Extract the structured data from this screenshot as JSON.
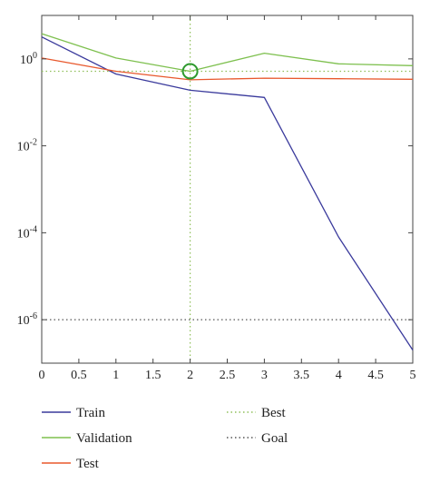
{
  "chart_data": {
    "type": "line",
    "title": "",
    "xlabel": "",
    "ylabel": "",
    "xlim": [
      0,
      5
    ],
    "ylim": [
      1e-07,
      10
    ],
    "yscale": "log",
    "grid": false,
    "x_ticks": [
      "0",
      "0.5",
      "1",
      "1.5",
      "2",
      "2.5",
      "3",
      "3.5",
      "4",
      "4.5",
      "5"
    ],
    "y_ticks": [
      {
        "value": 1,
        "base": "10",
        "exp": "0"
      },
      {
        "value": 0.01,
        "base": "10",
        "exp": "-2"
      },
      {
        "value": 0.0001,
        "base": "10",
        "exp": "-4"
      },
      {
        "value": 1e-06,
        "base": "10",
        "exp": "-6"
      }
    ],
    "x": [
      0,
      1,
      2,
      3,
      4,
      5
    ],
    "series": [
      {
        "name": "Train",
        "color": "#3a3a9c",
        "values": [
          3.2,
          0.45,
          0.19,
          0.13,
          8e-05,
          2e-07
        ]
      },
      {
        "name": "Validation",
        "color": "#7ec04f",
        "values": [
          3.8,
          1.05,
          0.52,
          1.35,
          0.77,
          0.7
        ]
      },
      {
        "name": "Test",
        "color": "#e8582d",
        "values": [
          1.05,
          0.52,
          0.33,
          0.36,
          0.35,
          0.34
        ]
      }
    ],
    "best": {
      "label": "Best",
      "color": "#8fbf5a",
      "epoch": 2,
      "value": 0.52
    },
    "goal": {
      "label": "Goal",
      "color": "#555555",
      "value": 1e-06
    },
    "legend": [
      {
        "label": "Train",
        "color": "#3a3a9c",
        "style": "solid"
      },
      {
        "label": "Validation",
        "color": "#7ec04f",
        "style": "solid"
      },
      {
        "label": "Test",
        "color": "#e8582d",
        "style": "solid"
      },
      {
        "label": "Best",
        "color": "#8fbf5a",
        "style": "dotted"
      },
      {
        "label": "Goal",
        "color": "#555555",
        "style": "dotted"
      }
    ],
    "legend_position": "bottom"
  }
}
